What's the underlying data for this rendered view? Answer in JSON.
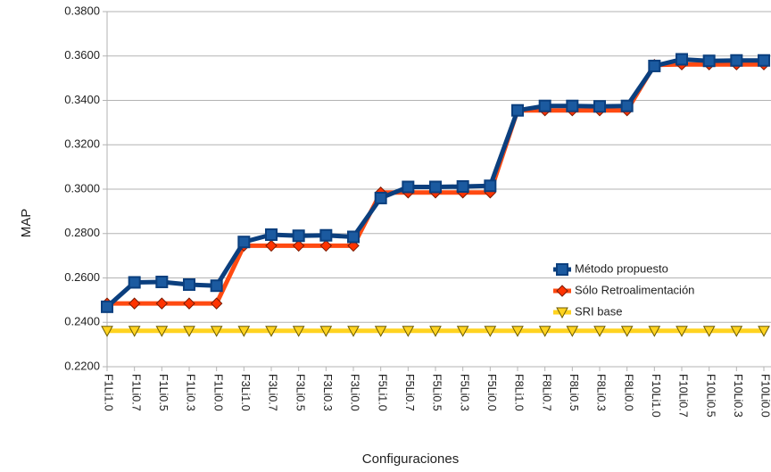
{
  "chart_data": {
    "type": "line",
    "x_label": "Configuraciones",
    "y_label": "MAP",
    "categories": [
      "F1Li1.0",
      "F1Li0.7",
      "F1Li0.5",
      "F1Li0.3",
      "F1Li0.0",
      "F3Li1.0",
      "F3Li0.7",
      "F3Li0.5",
      "F3Li0.3",
      "F3Li0.0",
      "F5Li1.0",
      "F5Li0.7",
      "F5Li0.5",
      "F5Li0.3",
      "F5Li0.0",
      "F8Li1.0",
      "F8Li0.7",
      "F8Li0.5",
      "F8Li0.3",
      "F8Li0.0",
      "F10Li1.0",
      "F10Li0.7",
      "F10Li0.5",
      "F10Li0.3",
      "F10Li0.0"
    ],
    "series": [
      {
        "name": "Método propuesto",
        "color": "#0b3f7e",
        "marker": "square",
        "values": [
          0.247,
          0.258,
          0.2582,
          0.257,
          0.2565,
          0.2762,
          0.2795,
          0.279,
          0.2792,
          0.2785,
          0.296,
          0.301,
          0.301,
          0.3012,
          0.3015,
          0.3355,
          0.3375,
          0.3375,
          0.3373,
          0.3375,
          0.3555,
          0.3585,
          0.3578,
          0.358,
          0.358
        ]
      },
      {
        "name": "Sólo Retroalimentación",
        "color": "#ff4a12",
        "marker": "diamond",
        "values": [
          0.2485,
          0.2485,
          0.2485,
          0.2485,
          0.2485,
          0.2745,
          0.2745,
          0.2745,
          0.2745,
          0.2745,
          0.2985,
          0.2985,
          0.2985,
          0.2985,
          0.2985,
          0.3355,
          0.3355,
          0.3355,
          0.3355,
          0.3355,
          0.356,
          0.3562,
          0.3562,
          0.3562,
          0.3562
        ]
      },
      {
        "name": "SRI base",
        "color": "#ffd320",
        "marker": "triangle",
        "values": [
          0.2362,
          0.2362,
          0.2362,
          0.2362,
          0.2362,
          0.2362,
          0.2362,
          0.2362,
          0.2362,
          0.2362,
          0.2362,
          0.2362,
          0.2362,
          0.2362,
          0.2362,
          0.2362,
          0.2362,
          0.2362,
          0.2362,
          0.2362,
          0.2362,
          0.2362,
          0.2362,
          0.2362,
          0.2362
        ]
      }
    ],
    "ylim": [
      0.22,
      0.38
    ],
    "yticks": [
      {
        "value": 0.22,
        "label": "0.2200"
      },
      {
        "value": 0.24,
        "label": "0.2400"
      },
      {
        "value": 0.26,
        "label": "0.2600"
      },
      {
        "value": 0.28,
        "label": "0.2800"
      },
      {
        "value": 0.3,
        "label": "0.3000"
      },
      {
        "value": 0.32,
        "label": "0.3200"
      },
      {
        "value": 0.34,
        "label": "0.3400"
      },
      {
        "value": 0.36,
        "label": "0.3600"
      },
      {
        "value": 0.38,
        "label": "0.3800"
      }
    ],
    "grid": true
  }
}
